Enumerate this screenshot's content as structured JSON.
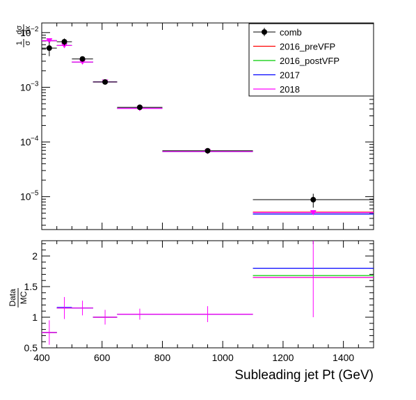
{
  "chart_data": [
    {
      "type": "scatter",
      "panel": "spectrum",
      "yscale": "log",
      "xlim": [
        400,
        1500
      ],
      "ylim": [
        2.5e-06,
        0.015
      ],
      "ylabel_parts": [
        "1",
        "σ",
        "dσ",
        "dx"
      ],
      "yticks": [
        {
          "value": 0.01,
          "label": "10",
          "exp": "−2"
        },
        {
          "value": 0.001,
          "label": "10",
          "exp": "−3"
        },
        {
          "value": 0.0001,
          "label": "10",
          "exp": "−4"
        },
        {
          "value": 1e-05,
          "label": "10",
          "exp": "−5"
        }
      ],
      "bins": [
        [
          400,
          450
        ],
        [
          450,
          500
        ],
        [
          500,
          570
        ],
        [
          570,
          650
        ],
        [
          650,
          800
        ],
        [
          800,
          1100
        ],
        [
          1100,
          1500
        ]
      ],
      "legend_position": "top-right",
      "series": [
        {
          "name": "comb",
          "color": "#000000",
          "marker": "circle",
          "values": [
            0.0052,
            0.0068,
            0.0033,
            0.00125,
            0.00043,
            6.9e-05,
            8.8e-06
          ],
          "errors": [
            0.0015,
            0.001,
            0.0002,
            5e-05,
            2e-05,
            4e-06,
            2.5e-06
          ]
        },
        {
          "name": "2016_preVFP",
          "color": "#ff0000",
          "values": [
            0.0071,
            0.0058,
            0.0029,
            0.00125,
            0.00041,
            6.7e-05,
            5.2e-06
          ]
        },
        {
          "name": "2016_postVFP",
          "color": "#00cc00",
          "values": [
            0.0071,
            0.0058,
            0.0029,
            0.00125,
            0.00041,
            6.7e-05,
            5.1e-06
          ]
        },
        {
          "name": "2017",
          "color": "#0000ff",
          "values": [
            0.0071,
            0.0058,
            0.0029,
            0.00125,
            0.00041,
            6.7e-05,
            4.8e-06
          ]
        },
        {
          "name": "2018",
          "color": "#ff00ff",
          "marker": "triangle-down",
          "values": [
            0.0071,
            0.0058,
            0.0029,
            0.00125,
            0.00041,
            6.7e-05,
            5.1e-06
          ]
        }
      ]
    },
    {
      "type": "scatter",
      "panel": "ratio",
      "xlim": [
        400,
        1500
      ],
      "ylim": [
        0.5,
        2.25
      ],
      "ylabel_parts": [
        "Data",
        "MC"
      ],
      "xlabel": "Subleading jet Pt (GeV)",
      "xticks": [
        400,
        600,
        800,
        1000,
        1200,
        1400
      ],
      "yticks": [
        {
          "value": 0.5,
          "label": "0.5"
        },
        {
          "value": 1,
          "label": "1"
        },
        {
          "value": 1.5,
          "label": "1.5"
        },
        {
          "value": 2,
          "label": "2"
        }
      ],
      "bins": [
        [
          400,
          450
        ],
        [
          450,
          500
        ],
        [
          500,
          570
        ],
        [
          570,
          650
        ],
        [
          650,
          800
        ],
        [
          800,
          1100
        ],
        [
          1100,
          1500
        ]
      ],
      "errors": [
        0.2,
        0.18,
        0.12,
        0.12,
        0.09,
        0.13,
        0.65
      ],
      "series": [
        {
          "name": "2016_preVFP",
          "color": "#ff0000",
          "values": [
            0.75,
            1.15,
            1.15,
            1.0,
            1.05,
            1.05,
            1.65
          ]
        },
        {
          "name": "2016_postVFP",
          "color": "#00cc00",
          "values": [
            0.75,
            1.15,
            1.15,
            1.0,
            1.05,
            1.05,
            1.68
          ]
        },
        {
          "name": "2017",
          "color": "#0000ff",
          "values": [
            0.75,
            1.16,
            1.15,
            1.0,
            1.05,
            1.05,
            1.8
          ]
        },
        {
          "name": "2018",
          "color": "#ff00ff",
          "values": [
            0.75,
            1.15,
            1.15,
            1.0,
            1.05,
            1.05,
            1.65
          ]
        }
      ]
    }
  ]
}
